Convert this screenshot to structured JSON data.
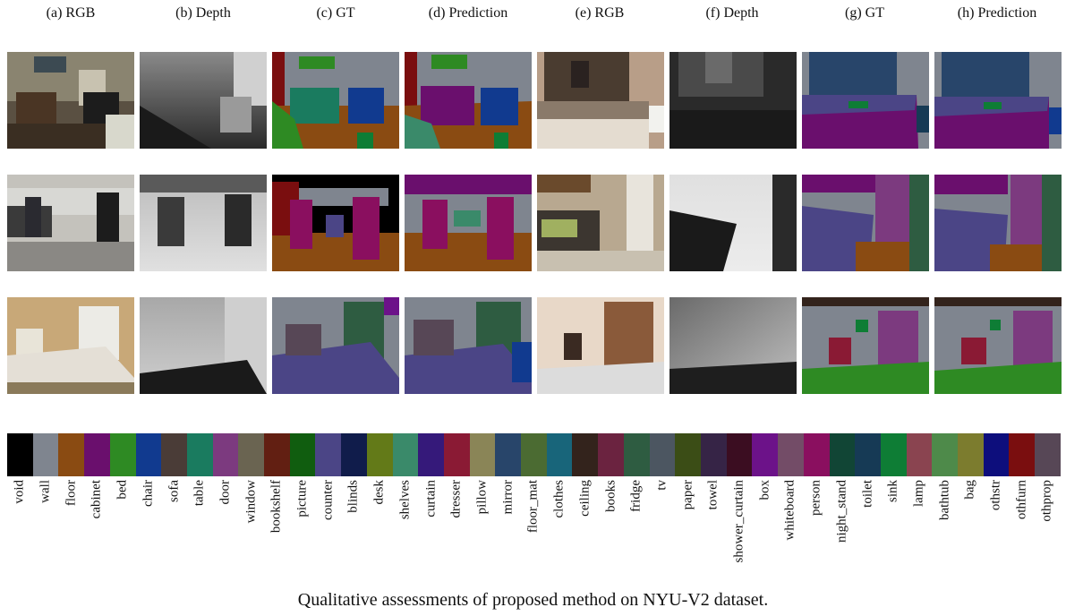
{
  "headers": [
    "(a) RGB",
    "(b) Depth",
    "(c) GT",
    "(d) Prediction",
    "(e) RGB",
    "(f) Depth",
    "(g) GT",
    "(h) Prediction"
  ],
  "caption": "Qualitative assessments of proposed method on NYU-V2 dataset.",
  "legend": [
    {
      "label": "void",
      "color": "#000000"
    },
    {
      "label": "wall",
      "color": "#7f858f"
    },
    {
      "label": "floor",
      "color": "#8a4b12"
    },
    {
      "label": "cabinet",
      "color": "#6a0f6d"
    },
    {
      "label": "bed",
      "color": "#2e8a23"
    },
    {
      "label": "chair",
      "color": "#113a8f"
    },
    {
      "label": "sofa",
      "color": "#4a3c37"
    },
    {
      "label": "table",
      "color": "#1a7b5f"
    },
    {
      "label": "door",
      "color": "#7c3a7f"
    },
    {
      "label": "window",
      "color": "#6a6451"
    },
    {
      "label": "bookshelf",
      "color": "#621f12"
    },
    {
      "label": "picture",
      "color": "#105d0f"
    },
    {
      "label": "counter",
      "color": "#4b4586"
    },
    {
      "label": "blinds",
      "color": "#101c4b"
    },
    {
      "label": "desk",
      "color": "#637a18"
    },
    {
      "label": "shelves",
      "color": "#3a8a6a"
    },
    {
      "label": "curtain",
      "color": "#35197a"
    },
    {
      "label": "dresser",
      "color": "#8a1a34"
    },
    {
      "label": "pillow",
      "color": "#8a8557"
    },
    {
      "label": "mirror",
      "color": "#28456a"
    },
    {
      "label": "floor_mat",
      "color": "#4b6b32"
    },
    {
      "label": "clothes",
      "color": "#18657a"
    },
    {
      "label": "ceiling",
      "color": "#33231c"
    },
    {
      "label": "books",
      "color": "#6b2340"
    },
    {
      "label": "fridge",
      "color": "#2e5c41"
    },
    {
      "label": "tv",
      "color": "#4c5661"
    },
    {
      "label": "paper",
      "color": "#3b4d16"
    },
    {
      "label": "towel",
      "color": "#362446"
    },
    {
      "label": "shower_curtain",
      "color": "#3b0d21"
    },
    {
      "label": "box",
      "color": "#6c1289"
    },
    {
      "label": "whiteboard",
      "color": "#734c67"
    },
    {
      "label": "person",
      "color": "#8a0f5f"
    },
    {
      "label": "night_stand",
      "color": "#114535"
    },
    {
      "label": "toilet",
      "color": "#163a55"
    },
    {
      "label": "sink",
      "color": "#0e7d35"
    },
    {
      "label": "lamp",
      "color": "#8a4450"
    },
    {
      "label": "bathtub",
      "color": "#4e8a4a"
    },
    {
      "label": "bag",
      "color": "#7c7c2e"
    },
    {
      "label": "othstr",
      "color": "#0d0e7c"
    },
    {
      "label": "othfurn",
      "color": "#7a0e0f"
    },
    {
      "label": "othprop",
      "color": "#574756"
    }
  ]
}
